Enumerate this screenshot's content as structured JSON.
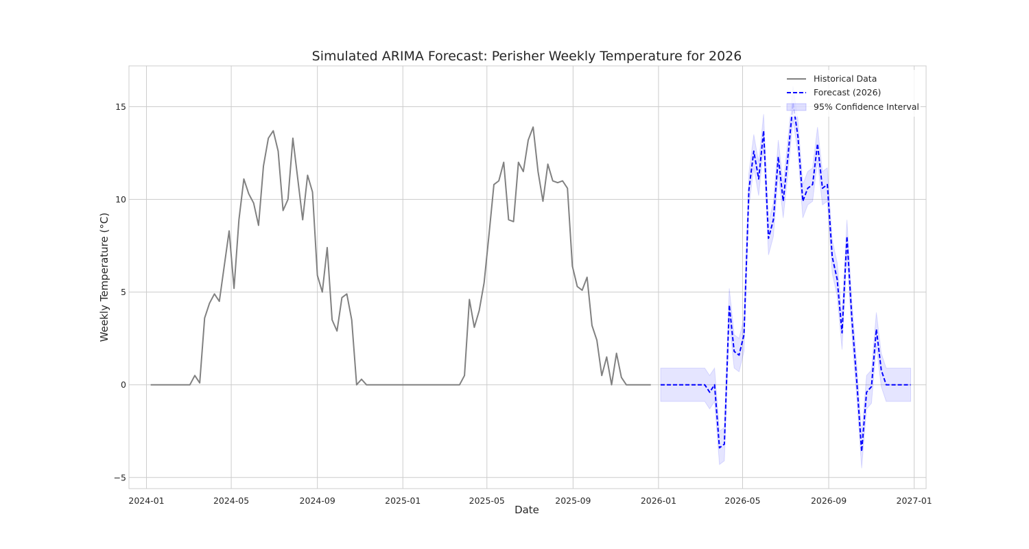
{
  "chart_data": {
    "type": "line",
    "title": "Simulated ARIMA Forecast: Perisher Weekly Temperature for 2026",
    "xlabel": "Date",
    "ylabel": "Weekly Temperature (°C)",
    "x_ticks": [
      "2024-01",
      "2024-05",
      "2024-09",
      "2025-01",
      "2025-05",
      "2025-09",
      "2026-01",
      "2026-05",
      "2026-09",
      "2027-01"
    ],
    "y_ticks": [
      "−5",
      "0",
      "5",
      "10",
      "15"
    ],
    "xlim": [
      "2023-12-07",
      "2027-01-18"
    ],
    "ylim": [
      -5.6,
      17.2
    ],
    "grid": true,
    "legend_position": "top-right",
    "legend": {
      "historical": "Historical Data",
      "forecast": "Forecast (2026)",
      "ci": "95% Confidence Interval"
    },
    "colors": {
      "historical": "#808080",
      "forecast": "#0000ff",
      "ci_fill": "#0000ff"
    },
    "series": [
      {
        "name": "Historical Data",
        "style": "solid",
        "start_date": "2024-01-07",
        "step_days": 7,
        "values": [
          0,
          0,
          0,
          0,
          0,
          0,
          0,
          0,
          0,
          0.5,
          0.1,
          3.6,
          4.4,
          4.9,
          4.5,
          6.4,
          8.3,
          5.2,
          8.9,
          11.1,
          10.3,
          9.8,
          8.6,
          11.8,
          13.3,
          13.7,
          12.6,
          9.4,
          10.0,
          13.3,
          11.1,
          8.9,
          11.3,
          10.4,
          5.9,
          5.0,
          7.4,
          3.5,
          2.9,
          4.7,
          4.9,
          3.5,
          0,
          0.3,
          0,
          0,
          0,
          0,
          0,
          0,
          0,
          0,
          0,
          0,
          0,
          0,
          0,
          0,
          0,
          0,
          0,
          0,
          0,
          0,
          0.5,
          4.6,
          3.1,
          4.0,
          5.5,
          8.1,
          10.8,
          11.0,
          12.0,
          8.9,
          8.8,
          12.0,
          11.5,
          13.2,
          13.9,
          11.5,
          9.9,
          11.9,
          11.0,
          10.9,
          11.0,
          10.6,
          6.4,
          5.3,
          5.1,
          5.8,
          3.2,
          2.4,
          0.5,
          1.5,
          0,
          1.7,
          0.4,
          0,
          0,
          0,
          0,
          0,
          0
        ]
      },
      {
        "name": "Forecast (2026)",
        "style": "dashed",
        "start_date": "2026-01-04",
        "step_days": 7,
        "values": [
          0,
          0,
          0,
          0,
          0,
          0,
          0,
          0,
          0,
          0,
          -0.4,
          0,
          -3.4,
          -3.2,
          4.3,
          1.8,
          1.6,
          2.7,
          10.5,
          12.6,
          11.1,
          13.7,
          7.9,
          8.9,
          12.3,
          9.9,
          12.4,
          15.2,
          13.4,
          9.9,
          10.6,
          10.8,
          13.0,
          10.6,
          10.8,
          6.9,
          5.7,
          2.8,
          8.0,
          3.6,
          0.2,
          -3.6,
          -0.4,
          -0.1,
          3.0,
          0.8,
          0,
          0,
          0,
          0,
          0,
          0
        ]
      }
    ],
    "confidence_interval": {
      "name": "95% Confidence Interval",
      "start_date": "2026-01-04",
      "step_days": 7,
      "half_width": [
        0.9,
        0.9,
        0.9,
        0.9,
        0.9,
        0.9,
        0.9,
        0.9,
        0.9,
        0.9,
        0.9,
        0.9,
        0.9,
        0.9,
        0.9,
        0.9,
        0.9,
        0.9,
        0.9,
        0.9,
        0.9,
        0.9,
        0.9,
        0.9,
        0.9,
        0.9,
        0.9,
        0.9,
        0.9,
        0.9,
        0.9,
        0.9,
        0.9,
        0.9,
        0.9,
        0.9,
        0.9,
        0.9,
        0.9,
        0.9,
        0.9,
        0.9,
        0.9,
        0.9,
        0.9,
        0.9,
        0.9,
        0.9,
        0.9,
        0.9,
        0.9,
        0.9
      ]
    }
  }
}
